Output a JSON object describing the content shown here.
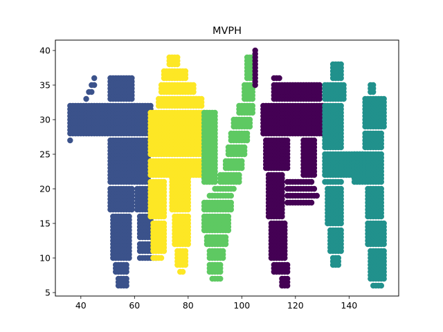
{
  "chart_data": {
    "type": "scatter",
    "title": "MVPH",
    "xlabel": "",
    "ylabel": "",
    "xlim": [
      30.5,
      158.5
    ],
    "ylim": [
      4.5,
      41.5
    ],
    "xticks": [
      40,
      60,
      80,
      100,
      120,
      140
    ],
    "yticks": [
      5,
      10,
      15,
      20,
      25,
      30,
      35,
      40
    ],
    "grid": false,
    "legend": "none",
    "colors": {
      "M": "#3b528b",
      "V": "#fde725",
      "P": "#5ec962",
      "H": "#440154",
      "E": "#21918c"
    },
    "spacing": {
      "dx": 1.0,
      "dy": 0.5
    },
    "series": [
      {
        "letter": "M",
        "color_key": "M",
        "segments": [
          [
            27,
            27,
            36,
            36
          ],
          [
            28,
            32,
            36,
            66
          ],
          [
            33,
            33,
            42,
            42
          ],
          [
            34,
            34,
            43,
            44
          ],
          [
            35,
            35,
            44,
            45
          ],
          [
            36,
            36,
            45,
            45
          ],
          [
            33,
            36,
            51,
            59
          ],
          [
            21,
            27,
            51,
            65
          ],
          [
            17,
            20,
            51,
            59
          ],
          [
            10,
            16,
            52,
            58
          ],
          [
            8,
            9,
            53,
            57
          ],
          [
            6,
            7,
            54,
            57
          ],
          [
            17,
            20,
            61,
            65
          ],
          [
            13,
            16,
            62,
            66
          ],
          [
            11,
            12,
            62,
            66
          ],
          [
            10,
            10,
            62,
            68
          ]
        ]
      },
      {
        "letter": "V",
        "color_key": "V",
        "segments": [
          [
            38,
            39,
            73,
            76
          ],
          [
            36,
            37,
            71,
            79
          ],
          [
            34,
            35,
            70,
            82
          ],
          [
            32,
            33,
            69,
            85
          ],
          [
            25,
            31,
            66,
            87
          ],
          [
            22,
            24,
            66,
            85
          ],
          [
            16,
            21,
            66,
            71
          ],
          [
            11,
            15,
            67,
            71
          ],
          [
            10,
            10,
            67,
            70
          ],
          [
            17,
            23,
            74,
            80
          ],
          [
            12,
            16,
            75,
            80
          ],
          [
            9,
            11,
            76,
            79
          ],
          [
            8,
            8,
            77,
            78
          ]
        ]
      },
      {
        "letter": "P",
        "color_key": "P",
        "segments": [
          [
            36,
            39,
            102,
            104
          ],
          [
            33,
            35,
            101,
            104
          ],
          [
            31,
            32,
            99,
            104
          ],
          [
            29,
            30,
            97,
            103
          ],
          [
            27,
            28,
            96,
            102
          ],
          [
            25,
            26,
            95,
            101
          ],
          [
            23,
            24,
            94,
            100
          ],
          [
            21,
            22,
            92,
            99
          ],
          [
            20,
            20,
            90,
            97
          ],
          [
            19,
            19,
            88,
            96
          ],
          [
            17,
            18,
            86,
            96
          ],
          [
            14,
            16,
            86,
            95
          ],
          [
            12,
            13,
            87,
            94
          ],
          [
            10,
            11,
            88,
            93
          ],
          [
            8,
            9,
            88,
            92
          ],
          [
            7,
            7,
            89,
            92
          ],
          [
            21,
            31,
            86,
            90
          ]
        ]
      },
      {
        "letter": "H",
        "color_key": "H",
        "segments": [
          [
            35,
            40,
            105,
            105
          ],
          [
            28,
            32,
            108,
            130
          ],
          [
            33,
            35,
            112,
            129
          ],
          [
            36,
            36,
            112,
            114
          ],
          [
            23,
            27,
            109,
            117
          ],
          [
            16,
            22,
            110,
            115
          ],
          [
            10,
            15,
            111,
            116
          ],
          [
            8,
            9,
            112,
            117
          ],
          [
            6,
            7,
            115,
            117
          ],
          [
            21,
            21,
            117,
            126
          ],
          [
            20,
            20,
            117,
            127
          ],
          [
            19,
            19,
            117,
            128
          ],
          [
            18,
            18,
            117,
            126
          ],
          [
            22,
            27,
            123,
            127
          ]
        ]
      },
      {
        "letter": "E",
        "color_key": "E",
        "segments": [
          [
            36,
            38,
            134,
            137
          ],
          [
            33,
            35,
            131,
            138
          ],
          [
            26,
            32,
            131,
            137
          ],
          [
            22,
            25,
            131,
            145
          ],
          [
            21,
            21,
            131,
            137
          ],
          [
            15,
            20,
            132,
            137
          ],
          [
            11,
            14,
            133,
            137
          ],
          [
            9,
            10,
            134,
            136
          ],
          [
            34,
            35,
            148,
            149
          ],
          [
            29,
            33,
            146,
            153
          ],
          [
            26,
            28,
            146,
            152
          ],
          [
            21,
            25,
            142,
            152
          ],
          [
            16,
            20,
            147,
            152
          ],
          [
            12,
            15,
            147,
            153
          ],
          [
            7,
            11,
            148,
            153
          ],
          [
            6,
            6,
            149,
            152
          ]
        ]
      }
    ]
  }
}
